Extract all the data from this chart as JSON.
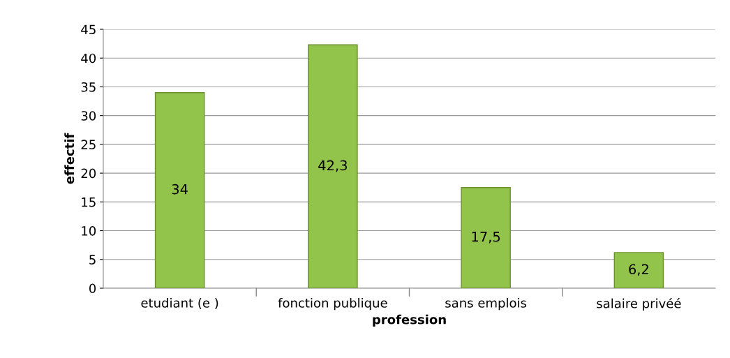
{
  "chart_data": {
    "type": "bar",
    "xlabel": "profession",
    "ylabel": "effectif",
    "categories": [
      "etudiant (e )",
      "fonction publique",
      "sans emplois",
      "salaire privéé"
    ],
    "values": [
      34,
      42.3,
      17.5,
      6.2
    ],
    "value_labels": [
      "34",
      "42,3",
      "17,5",
      "6,2"
    ],
    "color": "#92c34a",
    "ylim": [
      0,
      45
    ],
    "yticks": [
      0,
      5,
      10,
      15,
      20,
      25,
      30,
      35,
      40,
      45
    ],
    "grid": "y",
    "legend": false
  }
}
